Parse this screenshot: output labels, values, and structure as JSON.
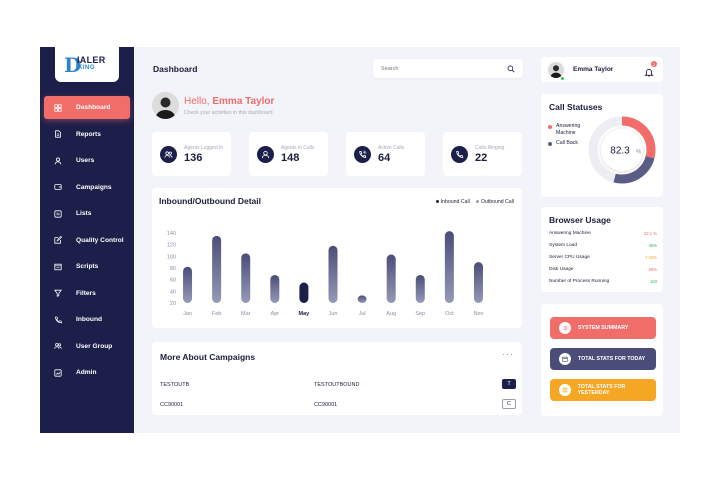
{
  "brand": {
    "logo_letter": "D",
    "logo_line1": "IALER",
    "logo_line2": "KING"
  },
  "sidebar": {
    "items": [
      {
        "label": "Dashboard",
        "icon": "dashboard-icon",
        "active": true
      },
      {
        "label": "Reports",
        "icon": "report-icon"
      },
      {
        "label": "Users",
        "icon": "user-icon"
      },
      {
        "label": "Campaigns",
        "icon": "campaign-icon"
      },
      {
        "label": "Lists",
        "icon": "list-icon"
      },
      {
        "label": "Quality Control",
        "icon": "edit-icon"
      },
      {
        "label": "Scripts",
        "icon": "script-icon"
      },
      {
        "label": "Filters",
        "icon": "filter-icon"
      },
      {
        "label": "Inbound",
        "icon": "phone-icon"
      },
      {
        "label": "User Group",
        "icon": "user-group-icon"
      },
      {
        "label": "Admin",
        "icon": "admin-icon"
      }
    ]
  },
  "header": {
    "title": "Dashboard",
    "search_placeholder": "Search"
  },
  "greeting": {
    "hello": "Hello, ",
    "name": "Emma Taylor",
    "subtitle": "Check your activities in this dashboard."
  },
  "stats": [
    {
      "label": "Agents Logged In",
      "value": "136"
    },
    {
      "label": "Agents in Calls",
      "value": "148"
    },
    {
      "label": "Active Calls",
      "value": "64"
    },
    {
      "label": "Calls Ringing",
      "value": "22"
    }
  ],
  "chart_data": {
    "type": "bar",
    "title": "Inbound/Outbound Detail",
    "categories": [
      "Jan",
      "Feb",
      "Mar",
      "Apr",
      "May",
      "Jun",
      "Jul",
      "Aug",
      "Sep",
      "Oct",
      "Nov"
    ],
    "highlight": "May",
    "series": [
      {
        "name": "Inbound Call",
        "values": [
          82,
          135,
          105,
          68,
          55,
          118,
          33,
          103,
          68,
          143,
          90
        ]
      }
    ],
    "legend": [
      "Inbound Call",
      "Outbound Call"
    ],
    "yticks": [
      20,
      40,
      60,
      80,
      100,
      120,
      140
    ],
    "ylim": [
      20,
      145
    ],
    "grid": false,
    "legend_position": "top-right",
    "colors": {
      "bar": "#5b5d87",
      "highlight": "#1c1f4a",
      "inbound_dot": "#1c1f4a",
      "outbound_dot": "#9a9cad"
    }
  },
  "campaigns": {
    "title": "More About Campaigns",
    "more": "···",
    "rows": [
      {
        "c1": "TESTOUTB",
        "c2": "TESTOUTBOUND",
        "tag": "T",
        "style": "dark"
      },
      {
        "c1": "CC90001",
        "c2": "CC90001",
        "tag": "C",
        "style": "light"
      }
    ]
  },
  "user": {
    "name": "Emma Taylor",
    "notifications": "2"
  },
  "call_statuses": {
    "title": "Call Statuses",
    "items": [
      {
        "label": "Answering Machine",
        "color": "#f06d6a",
        "percent": 29
      },
      {
        "label": "Call Back",
        "color": "#5b5d87",
        "percent": 25
      }
    ],
    "center_value": "82.3",
    "center_unit": "%"
  },
  "browser_usage": {
    "title": "Browser Usage",
    "rows": [
      {
        "label": "Answering Machine",
        "value": "22.1 %",
        "color": "#f06d6a"
      },
      {
        "label": "System Load",
        "value": "45%",
        "color": "#34b24f"
      },
      {
        "label": "Server CPU Usage",
        "value": "7.02%",
        "color": "#f5a623"
      },
      {
        "label": "Disk Usage",
        "value": "55%",
        "color": "#f06d6a"
      },
      {
        "label": "Number of Process Running",
        "value": "103",
        "color": "#34b24f"
      }
    ]
  },
  "actions": [
    {
      "label": "SYSTEM SUMMARY",
      "color": "#f06d6a",
      "icon": "list-icon"
    },
    {
      "label": "TOTAL STATS FOR TODAY",
      "color": "#4b4d78",
      "icon": "calendar-icon"
    },
    {
      "label": "TOTAL STATS FOR YESTERDAY",
      "color": "#f5a623",
      "icon": "menu-icon"
    }
  ]
}
